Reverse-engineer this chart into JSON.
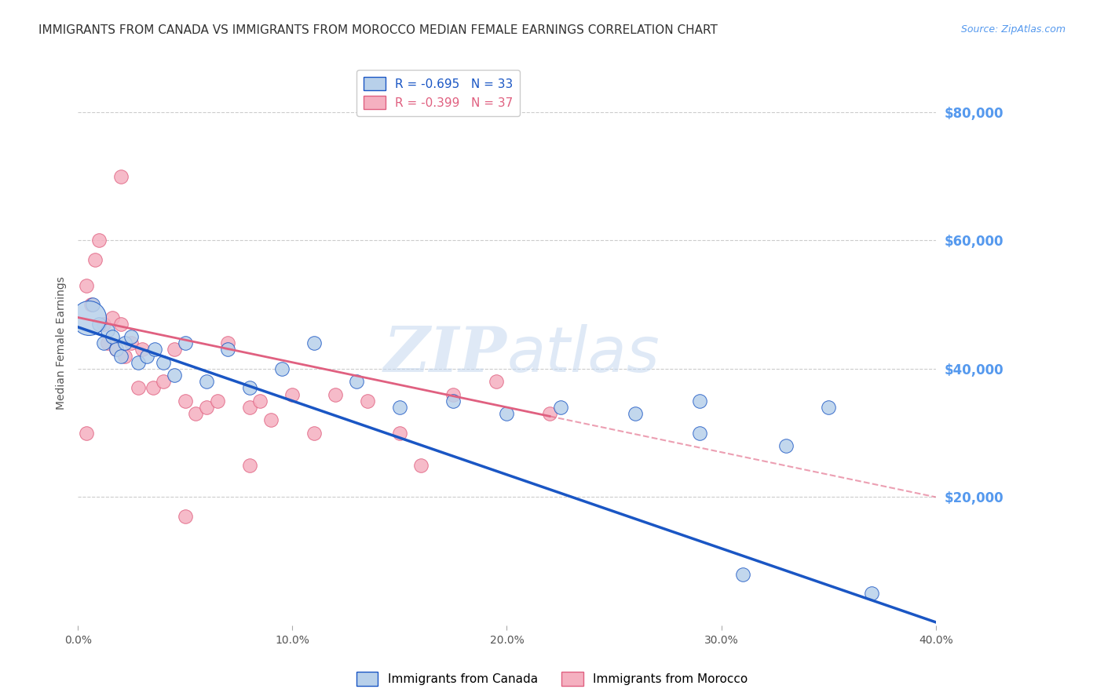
{
  "title": "IMMIGRANTS FROM CANADA VS IMMIGRANTS FROM MOROCCO MEDIAN FEMALE EARNINGS CORRELATION CHART",
  "source": "Source: ZipAtlas.com",
  "ylabel": "Median Female Earnings",
  "watermark": "ZIPatlas",
  "canada_R": -0.695,
  "canada_N": 33,
  "morocco_R": -0.399,
  "morocco_N": 37,
  "canada_color": "#b8d0ea",
  "morocco_color": "#f5b0c0",
  "canada_line_color": "#1a56c4",
  "morocco_line_color": "#e06080",
  "xmin": 0.0,
  "xmax": 0.4,
  "ymin": 0,
  "ymax": 88000,
  "yticks": [
    0,
    20000,
    40000,
    60000,
    80000
  ],
  "ytick_labels": [
    "",
    "$20,000",
    "$40,000",
    "$60,000",
    "$80,000"
  ],
  "xticks": [
    0.0,
    0.1,
    0.2,
    0.3,
    0.4
  ],
  "xtick_labels": [
    "0.0%",
    "10.0%",
    "20.0%",
    "30.0%",
    "40.0%"
  ],
  "canada_x": [
    0.005,
    0.007,
    0.01,
    0.012,
    0.014,
    0.016,
    0.018,
    0.02,
    0.022,
    0.025,
    0.028,
    0.032,
    0.036,
    0.04,
    0.045,
    0.05,
    0.06,
    0.07,
    0.08,
    0.095,
    0.11,
    0.13,
    0.15,
    0.175,
    0.2,
    0.225,
    0.26,
    0.29,
    0.31,
    0.35,
    0.29,
    0.33,
    0.37
  ],
  "canada_y": [
    48000,
    50000,
    47000,
    44000,
    46000,
    45000,
    43000,
    42000,
    44000,
    45000,
    41000,
    42000,
    43000,
    41000,
    39000,
    44000,
    38000,
    43000,
    37000,
    40000,
    44000,
    38000,
    34000,
    35000,
    33000,
    34000,
    33000,
    30000,
    8000,
    34000,
    35000,
    28000,
    5000
  ],
  "canada_size": [
    200,
    40,
    40,
    40,
    40,
    40,
    40,
    40,
    40,
    40,
    40,
    40,
    40,
    40,
    40,
    40,
    40,
    40,
    40,
    40,
    40,
    40,
    40,
    40,
    40,
    40,
    40,
    40,
    40,
    40,
    40,
    40,
    40
  ],
  "morocco_x": [
    0.004,
    0.006,
    0.008,
    0.01,
    0.012,
    0.014,
    0.016,
    0.018,
    0.02,
    0.022,
    0.025,
    0.028,
    0.03,
    0.035,
    0.04,
    0.045,
    0.05,
    0.055,
    0.06,
    0.065,
    0.07,
    0.08,
    0.085,
    0.09,
    0.1,
    0.11,
    0.12,
    0.135,
    0.15,
    0.16,
    0.175,
    0.195,
    0.22,
    0.05,
    0.08,
    0.02,
    0.004
  ],
  "morocco_y": [
    53000,
    50000,
    57000,
    60000,
    47000,
    44000,
    48000,
    43000,
    47000,
    42000,
    44000,
    37000,
    43000,
    37000,
    38000,
    43000,
    35000,
    33000,
    34000,
    35000,
    44000,
    34000,
    35000,
    32000,
    36000,
    30000,
    36000,
    35000,
    30000,
    25000,
    36000,
    38000,
    33000,
    17000,
    25000,
    70000,
    30000
  ],
  "background_color": "#ffffff",
  "grid_color": "#cccccc",
  "title_color": "#333333",
  "right_axis_color": "#5599ee",
  "title_fontsize": 11,
  "axis_label_fontsize": 10,
  "tick_fontsize": 10,
  "canada_line_intercept": 46500,
  "canada_line_slope": -115000,
  "morocco_line_intercept": 48000,
  "morocco_line_slope": -70000
}
